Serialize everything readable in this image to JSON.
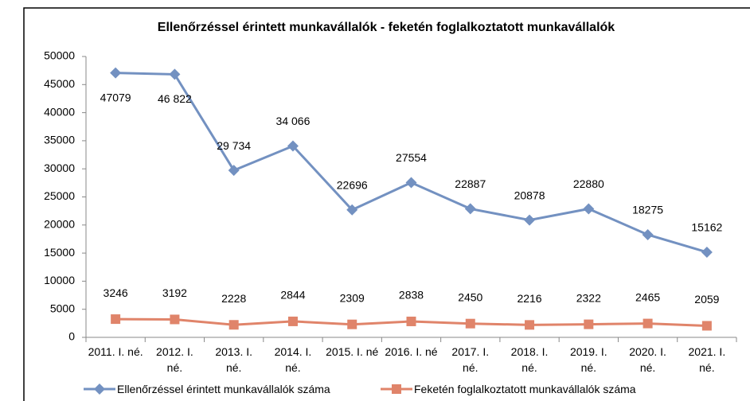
{
  "chart_data": {
    "type": "line",
    "title": "Ellenőrzéssel érintett munkavállalók - feketén foglalkoztatott munkavállalók",
    "categories": [
      "2011. I. né.",
      "2012. I. né.",
      "2013. I. né.",
      "2014. I. né.",
      "2015. I. né",
      "2016. I. né",
      "2017. I. né.",
      "2018. I. né.",
      "2019. I. né.",
      "2020. I. né.",
      "2021. I. né."
    ],
    "series": [
      {
        "name": "Ellenőrzéssel érintett munkavállalók száma",
        "color": "#7391c1",
        "marker": "diamond",
        "values": [
          47079,
          46822,
          29734,
          34066,
          22696,
          27554,
          22887,
          20878,
          22880,
          18275,
          15162
        ],
        "value_labels": [
          "47079",
          "46 822",
          "29 734",
          "34 066",
          "22696",
          "27554",
          "22887",
          "20878",
          "22880",
          "18275",
          "15162"
        ]
      },
      {
        "name": "Feketén foglalkoztatott munkavállalók száma",
        "color": "#e0846a",
        "marker": "square",
        "values": [
          3246,
          3192,
          2228,
          2844,
          2309,
          2838,
          2450,
          2216,
          2322,
          2465,
          2059
        ]
      }
    ],
    "ylim": [
      0,
      50000
    ],
    "yticks": [
      0,
      5000,
      10000,
      15000,
      20000,
      25000,
      30000,
      35000,
      40000,
      45000,
      50000
    ],
    "grid": false,
    "legend": "bottom"
  }
}
